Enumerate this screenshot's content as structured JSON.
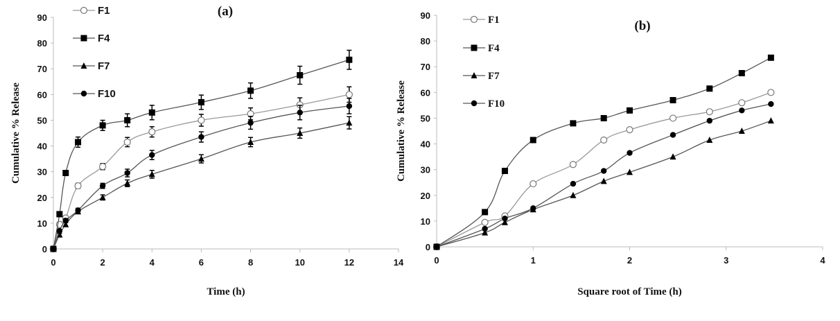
{
  "chart_data": [
    {
      "type": "line",
      "title": "(a)",
      "xlabel": "Time (h)",
      "ylabel": "Cumulative % Release",
      "xlim": [
        0,
        14
      ],
      "ylim": [
        0,
        90
      ],
      "xticks": [
        0,
        2,
        4,
        6,
        8,
        10,
        12,
        14
      ],
      "yticks": [
        0,
        10,
        20,
        30,
        40,
        50,
        60,
        70,
        80,
        90
      ],
      "grid": false,
      "legend": "top-left",
      "error_bars": true,
      "x": [
        0,
        0.25,
        0.5,
        1,
        2,
        3,
        4,
        6,
        8,
        10,
        12
      ],
      "series": [
        {
          "name": "F1",
          "marker": "open-circle",
          "color": "#999999",
          "values": [
            0,
            9.5,
            12,
            24.5,
            32,
            41.5,
            45.5,
            50,
            52.5,
            56,
            60
          ],
          "yerr": [
            0,
            0.5,
            0.8,
            1,
            1.2,
            1.8,
            2,
            2.3,
            2.3,
            2.7,
            3
          ]
        },
        {
          "name": "F4",
          "marker": "filled-square",
          "color": "#555555",
          "values": [
            0,
            13.5,
            29.5,
            41.5,
            48,
            50,
            53,
            57,
            61.5,
            67.5,
            73.5
          ],
          "yerr": [
            0,
            0.5,
            1,
            2,
            2,
            2.5,
            2.8,
            2.8,
            3,
            3.5,
            3.7
          ]
        },
        {
          "name": "F7",
          "marker": "filled-triangle",
          "color": "#555555",
          "values": [
            0,
            5.5,
            9.5,
            14.5,
            20,
            25.5,
            29,
            35,
            41.5,
            45,
            49
          ],
          "yerr": [
            0,
            0.5,
            0.8,
            0.8,
            1,
            1.3,
            1.5,
            1.6,
            1.8,
            2,
            2.4
          ]
        },
        {
          "name": "F10",
          "marker": "filled-circle",
          "color": "#555555",
          "values": [
            0,
            7,
            11,
            15,
            24.5,
            29.5,
            36.5,
            43.5,
            49,
            53,
            55.5
          ],
          "yerr": [
            0,
            0.5,
            0.8,
            0.8,
            1,
            1.5,
            1.8,
            2,
            2.5,
            2.8,
            3
          ]
        }
      ]
    },
    {
      "type": "line",
      "title": "(b)",
      "xlabel": "Square root of Time (h)",
      "ylabel": "Cumulative % Release",
      "xlim": [
        0,
        4
      ],
      "ylim": [
        0,
        90
      ],
      "xticks": [
        0,
        1,
        2,
        3,
        4
      ],
      "yticks": [
        0,
        10,
        20,
        30,
        40,
        50,
        60,
        70,
        80,
        90
      ],
      "grid": false,
      "legend": "top-left",
      "error_bars": false,
      "x": [
        0,
        0.5,
        0.707,
        1,
        1.414,
        1.732,
        2,
        2.449,
        2.828,
        3.162,
        3.464
      ],
      "series": [
        {
          "name": "F1",
          "marker": "open-circle",
          "color": "#999999",
          "values": [
            0,
            9.5,
            12,
            24.5,
            32,
            41.5,
            45.5,
            50,
            52.5,
            56,
            60
          ]
        },
        {
          "name": "F4",
          "marker": "filled-square",
          "color": "#555555",
          "values": [
            0,
            13.5,
            29.5,
            41.5,
            48,
            50,
            53,
            57,
            61.5,
            67.5,
            73.5
          ]
        },
        {
          "name": "F7",
          "marker": "filled-triangle",
          "color": "#555555",
          "values": [
            0,
            5.5,
            9.5,
            14.5,
            20,
            25.5,
            29,
            35,
            41.5,
            45,
            49
          ]
        },
        {
          "name": "F10",
          "marker": "filled-circle",
          "color": "#555555",
          "values": [
            0,
            7,
            11,
            15,
            24.5,
            29.5,
            36.5,
            43.5,
            49,
            53,
            55.5
          ]
        }
      ]
    }
  ]
}
